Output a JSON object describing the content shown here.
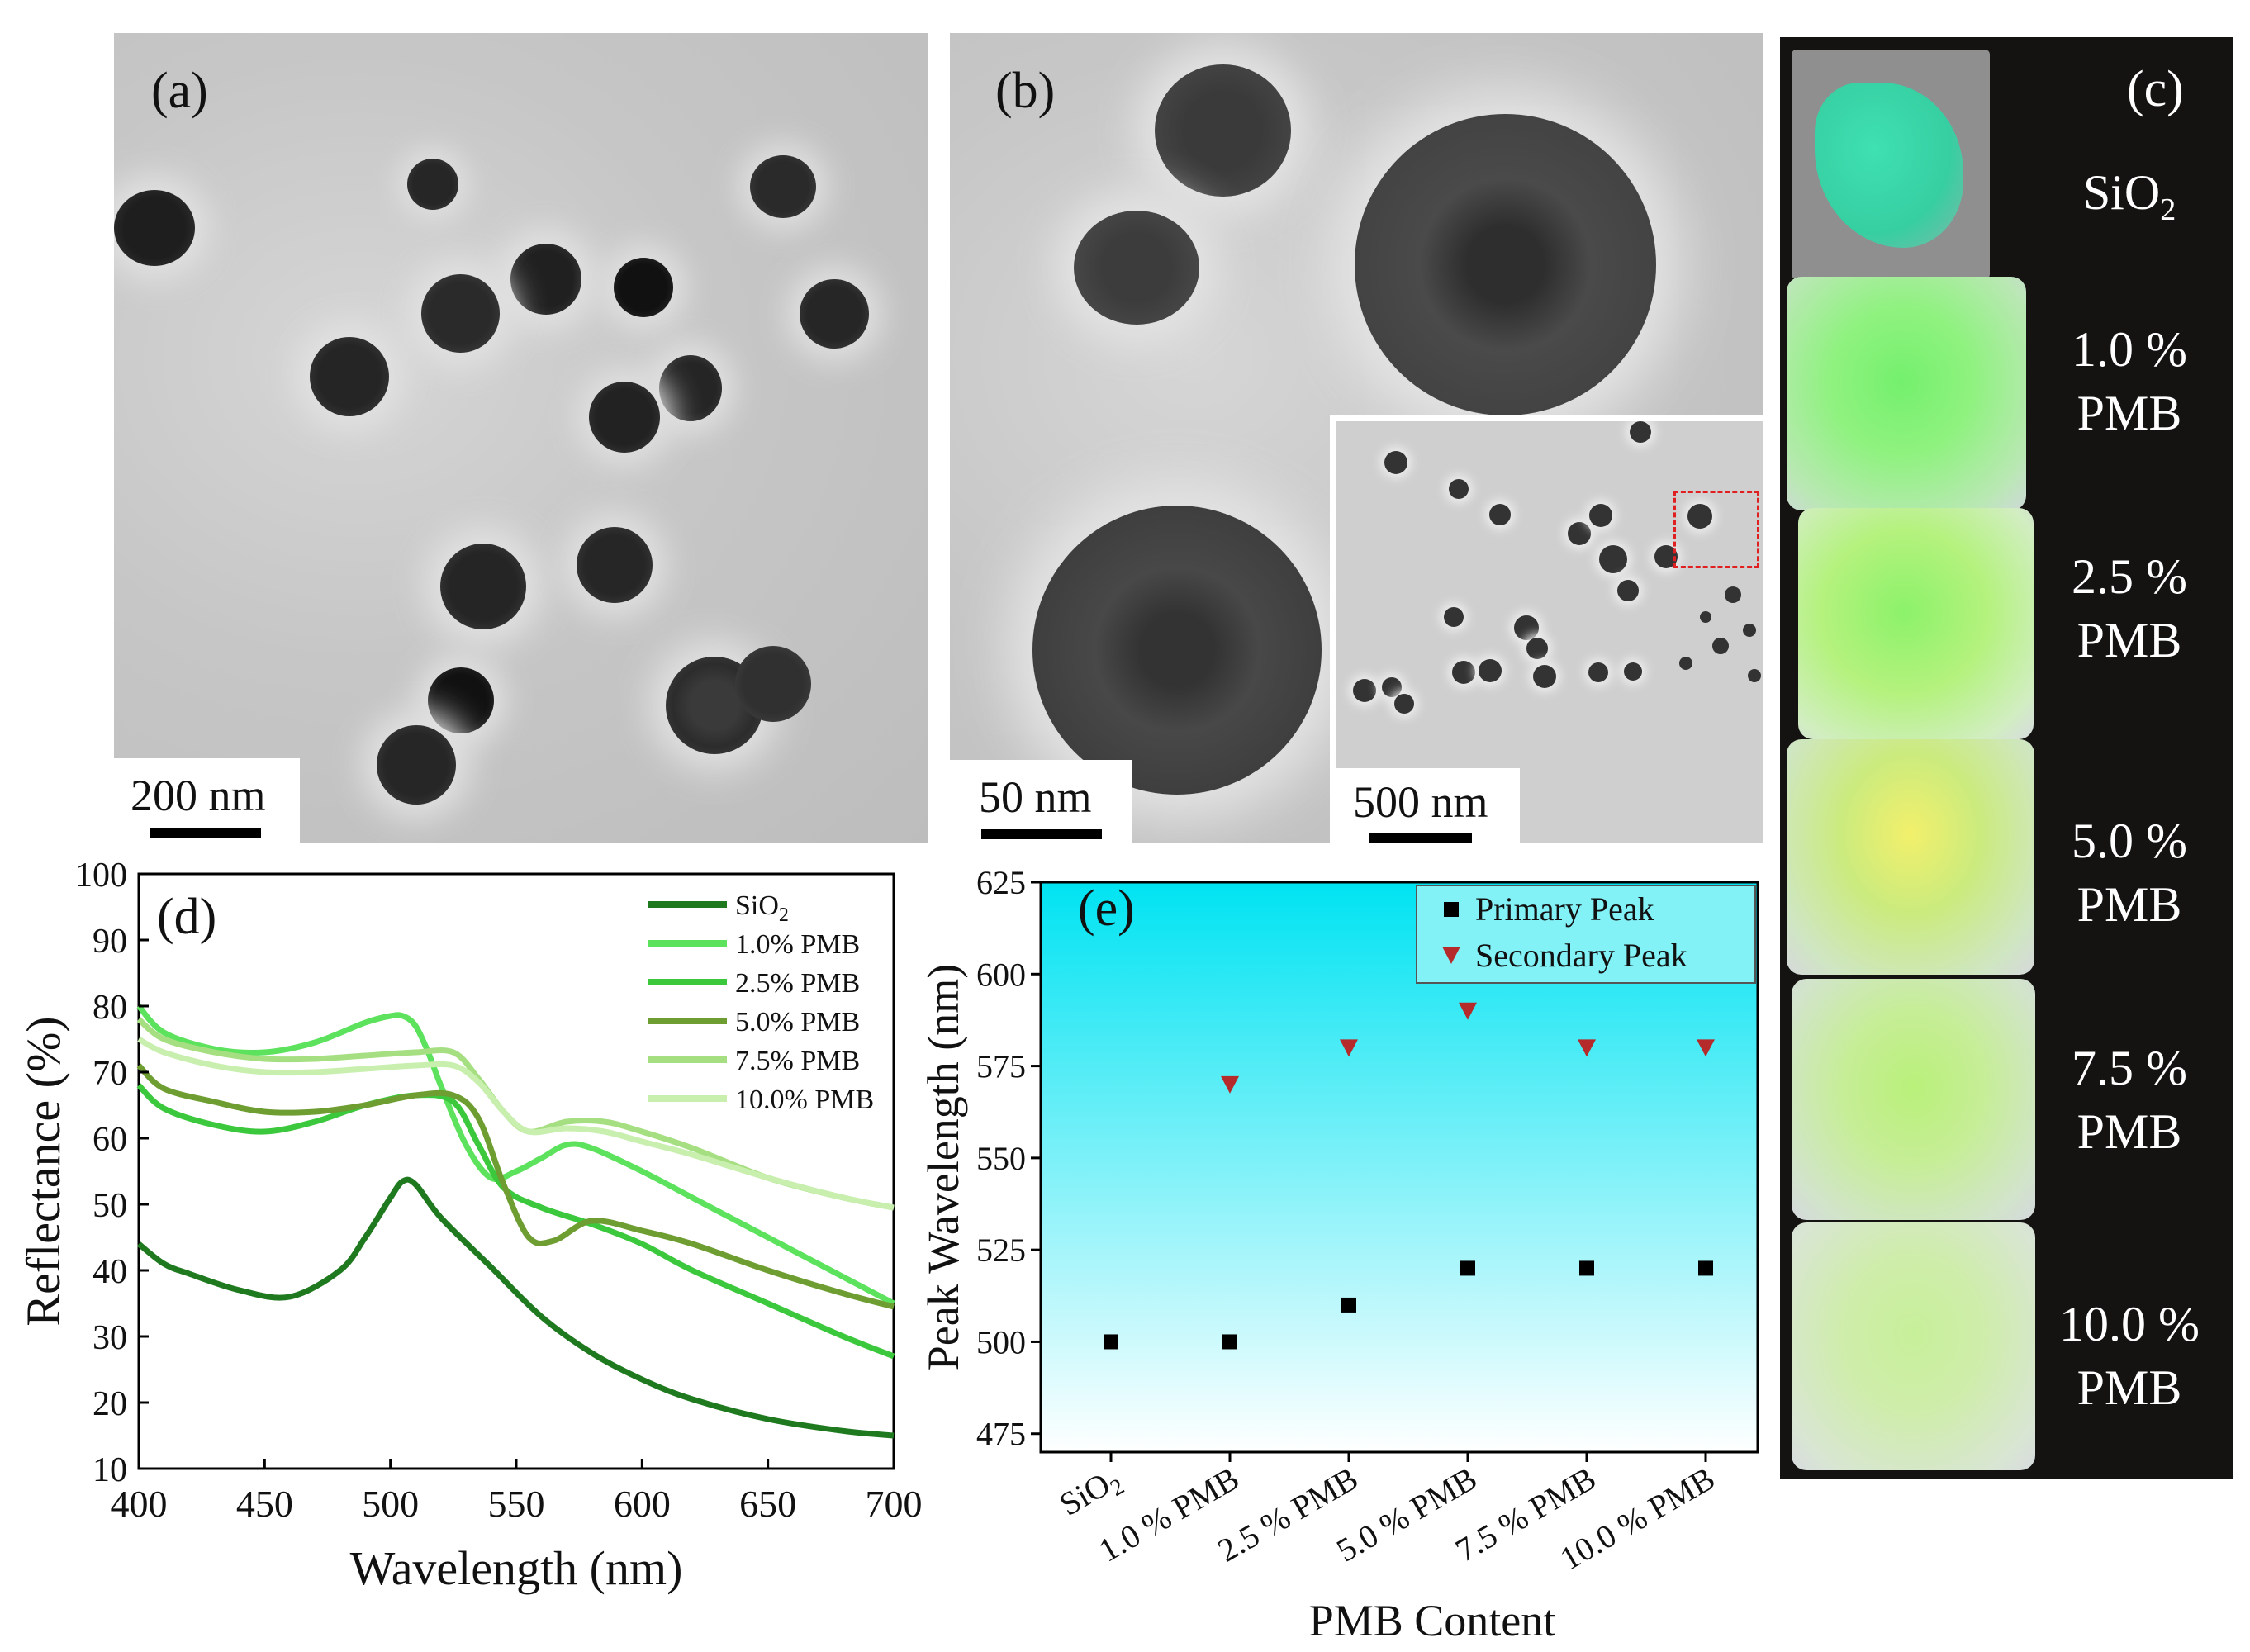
{
  "panels": {
    "a": {
      "label": "(a)",
      "scale": "200 nm"
    },
    "b": {
      "label": "(b)",
      "scale": "50 nm",
      "inset_scale": "500 nm"
    },
    "c": {
      "label": "(c)",
      "samples": [
        {
          "line1": "SiO",
          "sub": "2",
          "line2": ""
        },
        {
          "line1": "1.0 %",
          "sub": "",
          "line2": "PMB"
        },
        {
          "line1": "2.5 %",
          "sub": "",
          "line2": "PMB"
        },
        {
          "line1": "5.0 %",
          "sub": "",
          "line2": "PMB"
        },
        {
          "line1": "7.5 %",
          "sub": "",
          "line2": "PMB"
        },
        {
          "line1": "10.0 %",
          "sub": "",
          "line2": "PMB"
        }
      ]
    },
    "d": {
      "label": "(d)"
    },
    "e": {
      "label": "(e)"
    }
  },
  "chart_data": [
    {
      "panel": "d",
      "type": "line",
      "xlabel": "Wavelength (nm)",
      "ylabel": "Reflectance (%)",
      "xlim": [
        400,
        700
      ],
      "ylim": [
        10,
        100
      ],
      "xticks": [
        400,
        450,
        500,
        550,
        600,
        650,
        700
      ],
      "yticks": [
        10,
        20,
        30,
        40,
        50,
        60,
        70,
        80,
        90,
        100
      ],
      "legend_position": "top-right",
      "series": [
        {
          "name": "SiO",
          "name_sub": "2",
          "color": "#1f7a1f",
          "x": [
            400,
            410,
            420,
            440,
            460,
            480,
            490,
            500,
            505,
            510,
            520,
            540,
            560,
            580,
            600,
            620,
            650,
            680,
            700
          ],
          "y": [
            44,
            41,
            39.5,
            37,
            36,
            40,
            45,
            51,
            53.5,
            53,
            48,
            40.5,
            33,
            27.5,
            23.5,
            20.5,
            17.5,
            15.7,
            15
          ]
        },
        {
          "name": "1.0% PMB",
          "color": "#5ce25c",
          "x": [
            400,
            410,
            430,
            450,
            470,
            490,
            500,
            505,
            510,
            515,
            520,
            530,
            540,
            550,
            560,
            570,
            580,
            600,
            620,
            650,
            680,
            700
          ],
          "y": [
            80,
            76,
            73.5,
            73,
            74.5,
            77.5,
            78.5,
            78.5,
            77,
            73,
            68,
            59,
            54,
            55,
            57,
            59,
            58.5,
            55,
            51,
            45,
            39,
            35
          ]
        },
        {
          "name": "2.5% PMB",
          "color": "#3cc83c",
          "x": [
            400,
            410,
            430,
            450,
            470,
            490,
            510,
            525,
            535,
            545,
            560,
            580,
            600,
            620,
            650,
            680,
            700
          ],
          "y": [
            68,
            64.5,
            62,
            61,
            62.5,
            65,
            66.5,
            65.5,
            59,
            52.5,
            49.5,
            47,
            44,
            40,
            35,
            30,
            27
          ]
        },
        {
          "name": "5.0% PMB",
          "color": "#6e9e32",
          "x": [
            400,
            410,
            430,
            450,
            470,
            490,
            510,
            525,
            535,
            545,
            555,
            565,
            580,
            600,
            620,
            650,
            680,
            700
          ],
          "y": [
            71,
            67.5,
            65.5,
            64,
            64,
            65,
            66.5,
            66.5,
            63,
            53,
            45,
            44.5,
            47.5,
            46,
            44,
            40,
            36.5,
            34.5
          ]
        },
        {
          "name": "7.5% PMB",
          "color": "#a6df82",
          "x": [
            400,
            410,
            430,
            450,
            470,
            490,
            510,
            525,
            535,
            545,
            555,
            570,
            585,
            600,
            620,
            650,
            680,
            700
          ],
          "y": [
            78,
            75,
            73,
            72,
            72,
            72.5,
            73,
            73,
            69,
            64,
            61,
            62.5,
            62.5,
            61,
            58.5,
            54,
            51,
            49.5
          ]
        },
        {
          "name": "10.0% PMB",
          "color": "#c8efae",
          "x": [
            400,
            410,
            430,
            450,
            470,
            490,
            510,
            525,
            535,
            545,
            555,
            570,
            585,
            600,
            620,
            650,
            680,
            700
          ],
          "y": [
            75,
            73,
            71,
            70,
            70,
            70.5,
            71,
            71,
            68.5,
            64,
            61,
            61.5,
            61,
            59.5,
            57.5,
            54,
            51,
            49.5
          ]
        }
      ]
    },
    {
      "panel": "e",
      "type": "scatter",
      "xlabel": "PMB Content",
      "ylabel": "Peak Wavelength (nm)",
      "categories": [
        {
          "text": "SiO",
          "sub": "2"
        },
        {
          "text": "1.0 % PMB",
          "sub": ""
        },
        {
          "text": "2.5 % PMB",
          "sub": ""
        },
        {
          "text": "5.0 % PMB",
          "sub": ""
        },
        {
          "text": "7.5 % PMB",
          "sub": ""
        },
        {
          "text": "10.0 % PMB",
          "sub": ""
        }
      ],
      "ylim": [
        470,
        625
      ],
      "yticks": [
        475,
        500,
        525,
        550,
        575,
        600,
        625
      ],
      "legend_position": "top-right",
      "series": [
        {
          "name": "Primary Peak",
          "marker": "square",
          "color": "#000000",
          "values": [
            500,
            500,
            510,
            520,
            520,
            520
          ]
        },
        {
          "name": "Secondary Peak",
          "marker": "triangle-down",
          "color": "#b52a2a",
          "values": [
            null,
            570,
            580,
            590,
            580,
            580
          ]
        }
      ],
      "background_gradient": [
        "#00e3f2",
        "#ffffff"
      ]
    }
  ]
}
